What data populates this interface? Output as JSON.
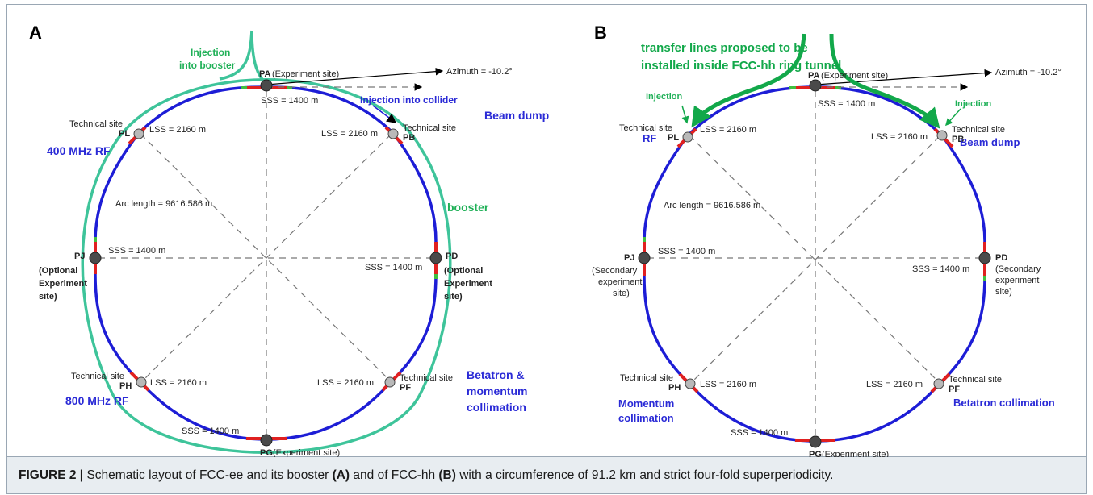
{
  "colors": {
    "ring": "#1d1dd6",
    "booster": "#3ec49a",
    "transfer": "#12a84a",
    "green_label": "#1fb057",
    "blue_label": "#2a2ad6",
    "segment_red": "#e02020",
    "segment_green": "#3fbf3f",
    "site_dark": "#4a4a4a",
    "site_light": "#b9b9b9"
  },
  "panelA": {
    "label": "A",
    "azimuth": "Azimuth = -10.2°",
    "pa": "PA",
    "pa_note": "(Experiment site)",
    "pg": "PG",
    "pg_note": "(Experiment site)",
    "sss_top": "SSS = 1400 m",
    "sss_bottom": "SSS = 1400 m",
    "sss_left": "SSS = 1400 m",
    "sss_right": "SSS = 1400 m",
    "lss_pl": "LSS = 2160 m",
    "lss_pb": "LSS = 2160 m",
    "lss_ph": "LSS = 2160 m",
    "lss_pf": "LSS = 2160 m",
    "arc": "Arc length = 9616.586 m",
    "tech_pl": "Technical site",
    "pl": "PL",
    "tech_pb": "Technical site",
    "pb": "PB",
    "tech_ph": "Technical site",
    "ph": "PH",
    "tech_pf": "Technical site",
    "pf": "PF",
    "pj": "PJ",
    "pd": "PD",
    "pj_note": [
      "(Optional",
      "Experiment",
      "site)"
    ],
    "pd_note": [
      "(Optional",
      "Experiment",
      "site)"
    ],
    "injection_booster": [
      "Injection",
      "into booster"
    ],
    "injection_collider": "Injection into collider",
    "beam_dump": "Beam dump",
    "rf400": "400 MHz RF",
    "booster": "booster",
    "rf800": "800 MHz RF",
    "betatron": [
      "Betatron &",
      "momentum",
      "collimation"
    ]
  },
  "panelB": {
    "label": "B",
    "transfer": [
      "transfer lines proposed to be",
      "installed inside FCC-hh ring tunnel"
    ],
    "azimuth": "Azimuth = -10.2°",
    "pa": "PA",
    "pa_note": "(Experiment site)",
    "pg": "PG",
    "pg_note": "(Experiment site)",
    "sss_top": "SSS = 1400 m",
    "sss_bottom": "SSS = 1400 m",
    "sss_left": "SSS = 1400 m",
    "sss_right": "SSS = 1400 m",
    "lss_pl": "LSS = 2160 m",
    "lss_pb": "LSS = 2160 m",
    "lss_ph": "LSS = 2160 m",
    "lss_pf": "LSS = 2160 m",
    "arc": "Arc length = 9616.586 m",
    "injection_left": "Injection",
    "injection_right": "Injection",
    "tech_pl": "Technical site",
    "rf": "RF",
    "pl": "PL",
    "tech_pb": "Technical site",
    "pb": "PB",
    "beam_dump": "Beam dump",
    "pj": "PJ",
    "pd": "PD",
    "pj_note": [
      "(Secondary",
      "experiment",
      "site)"
    ],
    "pd_note": [
      "(Secondary",
      "experiment",
      "site)"
    ],
    "tech_ph": "Technical site",
    "ph": "PH",
    "tech_pf": "Technical site",
    "pf": "PF",
    "momentum": [
      "Momentum",
      "collimation"
    ],
    "betatron": "Betatron collimation"
  },
  "caption": {
    "prefix": "FIGURE 2 |",
    "t1": " Schematic layout of FCC-ee and its booster ",
    "a": "(A)",
    "t2": " and of FCC-hh ",
    "b": "(B)",
    "t3": " with a circumference of 91.2 km and strict four-fold superperiodicity."
  }
}
